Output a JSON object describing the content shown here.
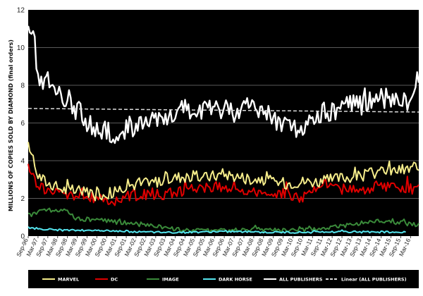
{
  "chart_data": {
    "type": "line",
    "xlabel": "",
    "ylabel": "MILLIONS OF COPIES SOLD BY DIAMOND (final orders)",
    "ylim": [
      0,
      12
    ],
    "yticks": [
      "0",
      "2",
      "4",
      "6",
      "8",
      "10",
      "12"
    ],
    "grid": true,
    "legend_position": "bottom",
    "x_start": "Sep-96",
    "x_end": "Aug-16",
    "x_tick_labels": [
      "Sep-96",
      "Mar-97",
      "Sep-97",
      "Mar-98",
      "Sep-98",
      "Mar-99",
      "Sep-99",
      "Mar-00",
      "Sep-00",
      "Mar-01",
      "Sep-01",
      "Mar-02",
      "Sep-02",
      "Mar-03",
      "Sep-03",
      "Mar-04",
      "Sep-04",
      "Mar-05",
      "Sep-05",
      "Mar-06",
      "Sep-06",
      "Mar-07",
      "Sep-07",
      "Mar-08",
      "Sep-08",
      "Mar-09",
      "Sep-09",
      "Mar-10",
      "Sep-10",
      "Mar-11",
      "Sep-11",
      "Mar-12",
      "Sep-12",
      "Mar-13",
      "Sep-13",
      "Mar-14",
      "Sep-14",
      "Mar-15",
      "Sep-15",
      "Mar-16"
    ],
    "series": [
      {
        "name": "MARVEL",
        "color": "#f5ec8a",
        "anchors": [
          [
            0,
            4.9
          ],
          [
            3,
            4.2
          ],
          [
            6,
            3.2
          ],
          [
            12,
            2.8
          ],
          [
            24,
            2.4
          ],
          [
            36,
            2.4
          ],
          [
            48,
            2.2
          ],
          [
            60,
            2.7
          ],
          [
            72,
            2.8
          ],
          [
            84,
            3.0
          ],
          [
            96,
            3.2
          ],
          [
            108,
            3.1
          ],
          [
            120,
            3.3
          ],
          [
            132,
            3.1
          ],
          [
            144,
            3.0
          ],
          [
            156,
            2.8
          ],
          [
            168,
            2.9
          ],
          [
            180,
            2.9
          ],
          [
            192,
            3.1
          ],
          [
            204,
            3.2
          ],
          [
            215,
            3.4
          ],
          [
            239,
            3.6
          ]
        ]
      },
      {
        "name": "DC",
        "color": "#e00000",
        "anchors": [
          [
            0,
            3.6
          ],
          [
            6,
            2.7
          ],
          [
            12,
            2.4
          ],
          [
            24,
            2.2
          ],
          [
            36,
            2.1
          ],
          [
            48,
            1.9
          ],
          [
            60,
            2.1
          ],
          [
            72,
            2.2
          ],
          [
            84,
            2.2
          ],
          [
            96,
            2.5
          ],
          [
            108,
            2.6
          ],
          [
            120,
            2.6
          ],
          [
            132,
            2.3
          ],
          [
            144,
            2.3
          ],
          [
            156,
            2.3
          ],
          [
            168,
            2.0
          ],
          [
            180,
            2.8
          ],
          [
            192,
            2.5
          ],
          [
            204,
            2.5
          ],
          [
            216,
            2.6
          ],
          [
            228,
            2.6
          ],
          [
            239,
            2.4
          ]
        ]
      },
      {
        "name": "IMAGE",
        "color": "#3a8a3a",
        "anchors": [
          [
            0,
            1.1
          ],
          [
            6,
            1.3
          ],
          [
            12,
            1.4
          ],
          [
            24,
            1.3
          ],
          [
            30,
            0.9
          ],
          [
            36,
            0.9
          ],
          [
            48,
            0.8
          ],
          [
            60,
            0.7
          ],
          [
            72,
            0.6
          ],
          [
            84,
            0.45
          ],
          [
            96,
            0.3
          ],
          [
            108,
            0.3
          ],
          [
            120,
            0.3
          ],
          [
            132,
            0.35
          ],
          [
            144,
            0.35
          ],
          [
            156,
            0.3
          ],
          [
            168,
            0.3
          ],
          [
            180,
            0.4
          ],
          [
            192,
            0.55
          ],
          [
            204,
            0.7
          ],
          [
            216,
            0.8
          ],
          [
            228,
            0.7
          ],
          [
            239,
            0.6
          ]
        ]
      },
      {
        "name": "DARK HORSE",
        "color": "#55e5ee",
        "anchors": [
          [
            0,
            0.45
          ],
          [
            12,
            0.35
          ],
          [
            24,
            0.3
          ],
          [
            36,
            0.3
          ],
          [
            48,
            0.28
          ],
          [
            60,
            0.25
          ],
          [
            72,
            0.22
          ],
          [
            84,
            0.2
          ],
          [
            96,
            0.2
          ],
          [
            108,
            0.22
          ],
          [
            120,
            0.25
          ],
          [
            132,
            0.22
          ],
          [
            144,
            0.2
          ],
          [
            156,
            0.2
          ],
          [
            168,
            0.2
          ],
          [
            180,
            0.2
          ],
          [
            192,
            0.22
          ],
          [
            204,
            0.22
          ],
          [
            216,
            0.22
          ],
          [
            228,
            0.2
          ],
          [
            231,
            0.2
          ]
        ]
      },
      {
        "name": "ALL PUBLISHERS",
        "color": "#ffffff",
        "anchors": [
          [
            0,
            10.6
          ],
          [
            3,
            11.3
          ],
          [
            6,
            8.2
          ],
          [
            12,
            8.2
          ],
          [
            18,
            7.5
          ],
          [
            24,
            7.0
          ],
          [
            30,
            6.7
          ],
          [
            36,
            6.1
          ],
          [
            42,
            5.6
          ],
          [
            48,
            5.6
          ],
          [
            54,
            5.0
          ],
          [
            60,
            5.8
          ],
          [
            66,
            5.8
          ],
          [
            72,
            6.0
          ],
          [
            78,
            6.1
          ],
          [
            84,
            6.1
          ],
          [
            90,
            6.2
          ],
          [
            96,
            6.5
          ],
          [
            102,
            6.6
          ],
          [
            108,
            6.7
          ],
          [
            114,
            6.6
          ],
          [
            120,
            6.8
          ],
          [
            126,
            6.6
          ],
          [
            132,
            6.9
          ],
          [
            138,
            6.8
          ],
          [
            144,
            6.5
          ],
          [
            150,
            6.3
          ],
          [
            156,
            6.0
          ],
          [
            162,
            5.8
          ],
          [
            168,
            5.6
          ],
          [
            174,
            6.0
          ],
          [
            180,
            6.6
          ],
          [
            186,
            6.6
          ],
          [
            192,
            6.8
          ],
          [
            198,
            7.0
          ],
          [
            204,
            7.0
          ],
          [
            210,
            7.2
          ],
          [
            216,
            7.4
          ],
          [
            222,
            7.2
          ],
          [
            228,
            7.2
          ],
          [
            234,
            7.0
          ],
          [
            239,
            8.6
          ]
        ]
      },
      {
        "name": "Linear (ALL PUBLISHERS)",
        "color": "#dcdcdc",
        "dashed": true,
        "anchors": [
          [
            0,
            6.77
          ],
          [
            239,
            6.58
          ]
        ]
      }
    ]
  }
}
